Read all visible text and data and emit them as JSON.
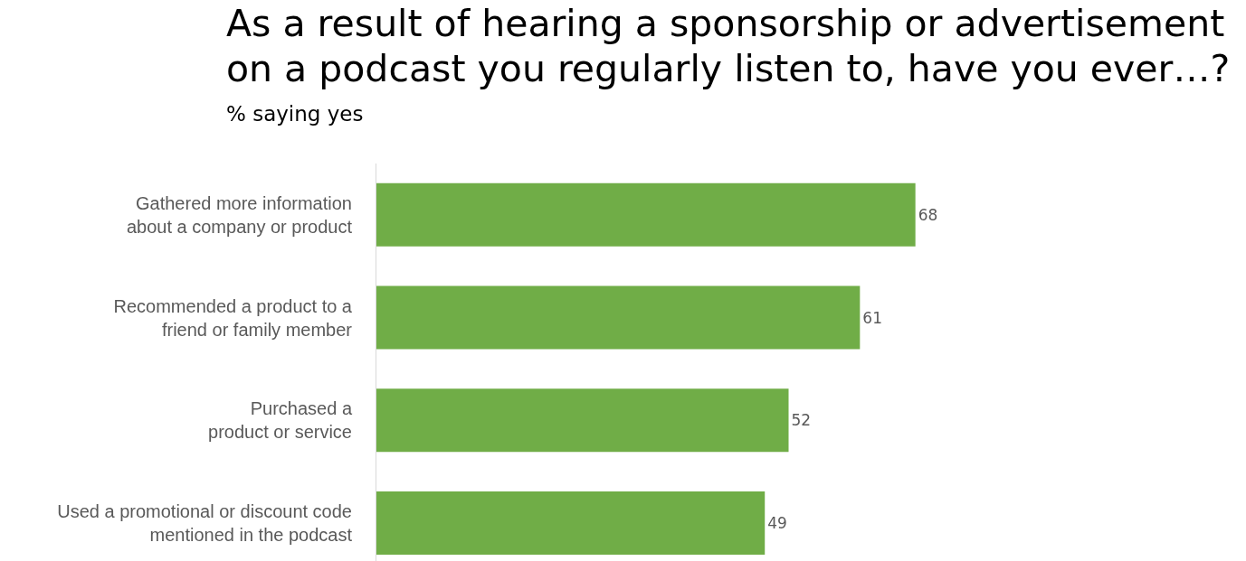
{
  "chart_data": {
    "type": "bar",
    "orientation": "horizontal",
    "title": "As a result of hearing a sponsorship or advertisement\non a podcast you regularly listen to, have you ever…?",
    "subtitle": "% saying yes",
    "categories": [
      "Gathered more information\nabout a company or product",
      "Recommended a product to a\nfriend or family member",
      "Purchased a\nproduct or service",
      "Used a promotional or discount code\nmentioned in the podcast"
    ],
    "values": [
      68,
      61,
      52,
      49
    ],
    "color": "#70ad47",
    "data_labels": true
  }
}
